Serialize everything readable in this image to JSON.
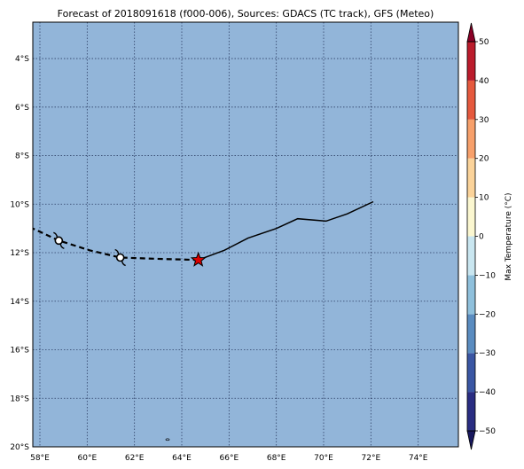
{
  "title": "Forecast of 2018091618 (f000-006), Sources: GDACS (TC track), GFS (Meteo)",
  "map": {
    "ocean_color": "#92b5d9",
    "grid_color": "#2d3f66",
    "track_color": "#000000",
    "marker_color": "#dd0000",
    "lon_range": [
      57.7,
      75.7
    ],
    "lat_range": [
      -20.0,
      -2.5
    ],
    "lon_ticks": [
      {
        "value": 58,
        "label": "58°E"
      },
      {
        "value": 60,
        "label": "60°E"
      },
      {
        "value": 62,
        "label": "62°E"
      },
      {
        "value": 64,
        "label": "64°E"
      },
      {
        "value": 66,
        "label": "66°E"
      },
      {
        "value": 68,
        "label": "68°E"
      },
      {
        "value": 70,
        "label": "70°E"
      },
      {
        "value": 72,
        "label": "72°E"
      },
      {
        "value": 74,
        "label": "74°E"
      }
    ],
    "lat_ticks": [
      {
        "value": -4,
        "label": "4°S"
      },
      {
        "value": -6,
        "label": "6°S"
      },
      {
        "value": -8,
        "label": "8°S"
      },
      {
        "value": -10,
        "label": "10°S"
      },
      {
        "value": -12,
        "label": "12°S"
      },
      {
        "value": -14,
        "label": "14°S"
      },
      {
        "value": -16,
        "label": "16°S"
      },
      {
        "value": -18,
        "label": "18°S"
      },
      {
        "value": -20,
        "label": "20°S"
      }
    ],
    "past_track": [
      [
        72.1,
        -9.9
      ],
      [
        71.0,
        -10.4
      ],
      [
        70.1,
        -10.7
      ],
      [
        68.9,
        -10.6
      ],
      [
        68.0,
        -11.0
      ],
      [
        66.8,
        -11.4
      ],
      [
        65.8,
        -11.9
      ],
      [
        64.7,
        -12.3
      ]
    ],
    "forecast_track": [
      [
        64.7,
        -12.3
      ],
      [
        62.9,
        -12.25
      ],
      [
        61.4,
        -12.2
      ],
      [
        60.1,
        -11.9
      ],
      [
        58.8,
        -11.5
      ],
      [
        57.7,
        -11.0
      ]
    ],
    "current_position": [
      64.7,
      -12.3
    ],
    "storm_symbols": [
      [
        61.4,
        -12.2
      ],
      [
        58.8,
        -11.5
      ]
    ],
    "small_island": [
      63.4,
      -19.7
    ]
  },
  "colorbar": {
    "label": "Max Temperature (°C)",
    "bounds": [
      -50,
      -40,
      -30,
      -20,
      -10,
      0,
      10,
      20,
      30,
      40,
      50
    ],
    "tick_labels": [
      "−50",
      "−40",
      "−30",
      "−20",
      "−10",
      "0",
      "10",
      "20",
      "30",
      "40",
      "50"
    ],
    "colors": [
      "#2a2d82",
      "#3a56a3",
      "#5a8cc0",
      "#8fc0dc",
      "#c9e6f0",
      "#fbf7d0",
      "#fbd39a",
      "#f7a06b",
      "#e5593e",
      "#bb1c2c"
    ],
    "under_color": "#18185e",
    "over_color": "#8a0026"
  }
}
